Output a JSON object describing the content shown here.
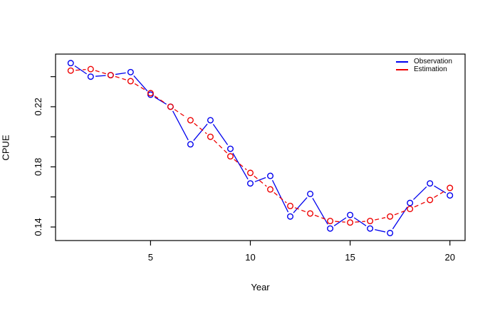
{
  "chart_data": {
    "type": "line",
    "title": "",
    "xlabel": "Year",
    "ylabel": "CPUE",
    "x": [
      1,
      2,
      3,
      4,
      5,
      6,
      7,
      8,
      9,
      10,
      11,
      12,
      13,
      14,
      15,
      16,
      17,
      18,
      19,
      20
    ],
    "series": [
      {
        "name": "Observation",
        "color": "#0000ee",
        "line_style": "solid",
        "marker": "open-circle",
        "values": [
          0.249,
          0.24,
          0.241,
          0.243,
          0.228,
          0.22,
          0.195,
          0.211,
          0.192,
          0.169,
          0.174,
          0.147,
          0.162,
          0.139,
          0.148,
          0.139,
          0.136,
          0.156,
          0.169,
          0.161
        ]
      },
      {
        "name": "Estimation",
        "color": "#ee0000",
        "line_style": "dashed",
        "marker": "open-circle",
        "values": [
          0.244,
          0.245,
          0.241,
          0.237,
          0.229,
          0.22,
          0.211,
          0.2,
          0.187,
          0.176,
          0.165,
          0.154,
          0.149,
          0.144,
          0.143,
          0.144,
          0.147,
          0.152,
          0.158,
          0.166
        ]
      }
    ],
    "x_ticks": [
      5,
      10,
      15,
      20
    ],
    "x_tick_labels": [
      "5",
      "10",
      "15",
      "20"
    ],
    "y_ticks": [
      0.14,
      0.16,
      0.18,
      0.2,
      0.22,
      0.24
    ],
    "y_tick_labels": [
      "0.14",
      "",
      "0.18",
      "",
      "0.22",
      ""
    ],
    "xlim": [
      0.24,
      20.76
    ],
    "ylim": [
      0.131,
      0.255
    ],
    "grid": false,
    "legend_position": "top-right",
    "axis_color": "#000000",
    "background_color": "#ffffff"
  },
  "legend": {
    "items": [
      {
        "label": "Observation",
        "color": "#0000ee"
      },
      {
        "label": "Estimation",
        "color": "#ee0000"
      }
    ]
  }
}
